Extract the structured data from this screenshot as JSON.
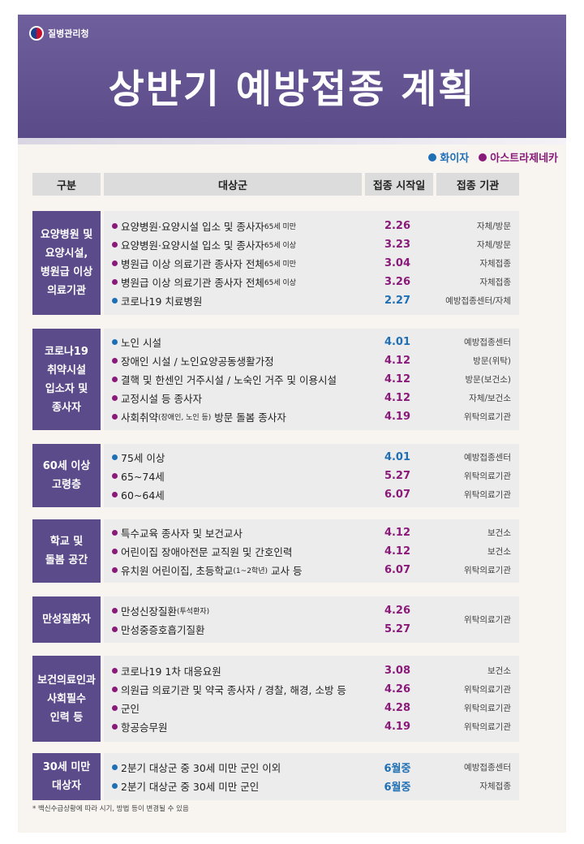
{
  "header": {
    "agency": "질병관리청",
    "title": "상반기 예방접종 계획"
  },
  "legend": [
    {
      "label": "화이자",
      "color": "#1f6fb5"
    },
    {
      "label": "아스트라제네카",
      "color": "#8a1a7a"
    }
  ],
  "colors": {
    "pfizer": "#1f6fb5",
    "astrazeneca": "#8a1a7a",
    "category_bg": "#5c4b8b",
    "header_bg": "#6f5f9c"
  },
  "columns": [
    "구분",
    "대상군",
    "접종 시작일",
    "접종 기관"
  ],
  "groups": [
    {
      "category": "요양병원 및\n요양시설,\n병원급 이상\n의료기관",
      "rows": [
        {
          "vaccine": "astrazeneca",
          "target": "요양병원·요양시설 입소 및 종사자",
          "note": "65세 미만",
          "date": "2.26",
          "org": "자체/방문"
        },
        {
          "vaccine": "astrazeneca",
          "target": "요양병원·요양시설 입소 및 종사자",
          "note": "65세 이상",
          "date": "3.23",
          "org": "자체/방문"
        },
        {
          "vaccine": "astrazeneca",
          "target": "병원급 이상 의료기관 종사자 전체",
          "note": "65세 미만",
          "date": "3.04",
          "org": "자체접종"
        },
        {
          "vaccine": "astrazeneca",
          "target": "병원급 이상 의료기관 종사자 전체",
          "note": "65세 이상",
          "date": "3.26",
          "org": "자체접종"
        },
        {
          "vaccine": "pfizer",
          "target": "코로나19 치료병원",
          "note": "",
          "date": "2.27",
          "org": "예방접종센터/자체"
        }
      ]
    },
    {
      "category": "코로나19\n취약시설\n입소자 및\n종사자",
      "rows": [
        {
          "vaccine": "pfizer",
          "target": "노인 시설",
          "note": "",
          "date": "4.01",
          "org": "예방접종센터"
        },
        {
          "vaccine": "astrazeneca",
          "target": "장애인 시설 / 노인요양공동생활가정",
          "note": "",
          "date": "4.12",
          "org": "방문(위탁)"
        },
        {
          "vaccine": "astrazeneca",
          "target": "결핵 및 한센인 거주시설 / 노숙인 거주 및 이용시설",
          "note": "",
          "date": "4.12",
          "org": "방문(보건소)"
        },
        {
          "vaccine": "astrazeneca",
          "target": "교정시설 등 종사자",
          "note": "",
          "date": "4.12",
          "org": "자체/보건소"
        },
        {
          "vaccine": "astrazeneca",
          "target": "사회취약",
          "note": "(장애인, 노인 등)",
          "target_after": " 방문 돌봄 종사자",
          "date": "4.19",
          "org": "위탁의료기관"
        }
      ]
    },
    {
      "category": "60세 이상\n고령층",
      "rows": [
        {
          "vaccine": "pfizer",
          "target": "75세 이상",
          "note": "",
          "date": "4.01",
          "org": "예방접종센터"
        },
        {
          "vaccine": "astrazeneca",
          "target": "65~74세",
          "note": "",
          "date": "5.27",
          "org": "위탁의료기관"
        },
        {
          "vaccine": "astrazeneca",
          "target": "60~64세",
          "note": "",
          "date": "6.07",
          "org": "위탁의료기관"
        }
      ]
    },
    {
      "category": "학교 및\n돌봄 공간",
      "rows": [
        {
          "vaccine": "astrazeneca",
          "target": "특수교육 종사자 및 보건교사",
          "note": "",
          "date": "4.12",
          "org": "보건소"
        },
        {
          "vaccine": "astrazeneca",
          "target": "어린이집 장애아전문 교직원 및 간호인력",
          "note": "",
          "date": "4.12",
          "org": "보건소"
        },
        {
          "vaccine": "astrazeneca",
          "target": "유치원 어린이집, 초등학교",
          "note": "(1~2학년)",
          "target_after": " 교사 등",
          "date": "6.07",
          "org": "위탁의료기관"
        }
      ]
    },
    {
      "category": "만성질환자",
      "merged_org": "위탁의료기관",
      "rows": [
        {
          "vaccine": "astrazeneca",
          "target": "만성신장질환",
          "note": "(투석환자)",
          "date": "4.26",
          "org": ""
        },
        {
          "vaccine": "astrazeneca",
          "target": "만성중증호흡기질환",
          "note": "",
          "date": "5.27",
          "org": ""
        }
      ]
    },
    {
      "category": "보건의료인과\n사회필수\n인력 등",
      "rows": [
        {
          "vaccine": "astrazeneca",
          "target": "코로나19 1차 대응요원",
          "note": "",
          "date": "3.08",
          "org": "보건소"
        },
        {
          "vaccine": "astrazeneca",
          "target": "의원급 의료기관 및 약국 종사자 / 경찰, 해경, 소방 등",
          "note": "",
          "date": "4.26",
          "org": "위탁의료기관"
        },
        {
          "vaccine": "astrazeneca",
          "target": "군인",
          "note": "",
          "date": "4.28",
          "org": "위탁의료기관"
        },
        {
          "vaccine": "astrazeneca",
          "target": "항공승무원",
          "note": "",
          "date": "4.19",
          "org": "위탁의료기관"
        }
      ]
    },
    {
      "category": "30세 미만\n대상자",
      "rows": [
        {
          "vaccine": "pfizer",
          "target": "2분기 대상군 중 30세 미만 군인 이외",
          "note": "",
          "date": "6월중",
          "org": "예방접종센터"
        },
        {
          "vaccine": "pfizer",
          "target": "2분기 대상군 중 30세 미만 군인",
          "note": "",
          "date": "6월중",
          "org": "자체접종"
        }
      ]
    }
  ],
  "footnote": "* 백신수급상황에 따라 시기, 방법 등이 변경될 수 있음"
}
